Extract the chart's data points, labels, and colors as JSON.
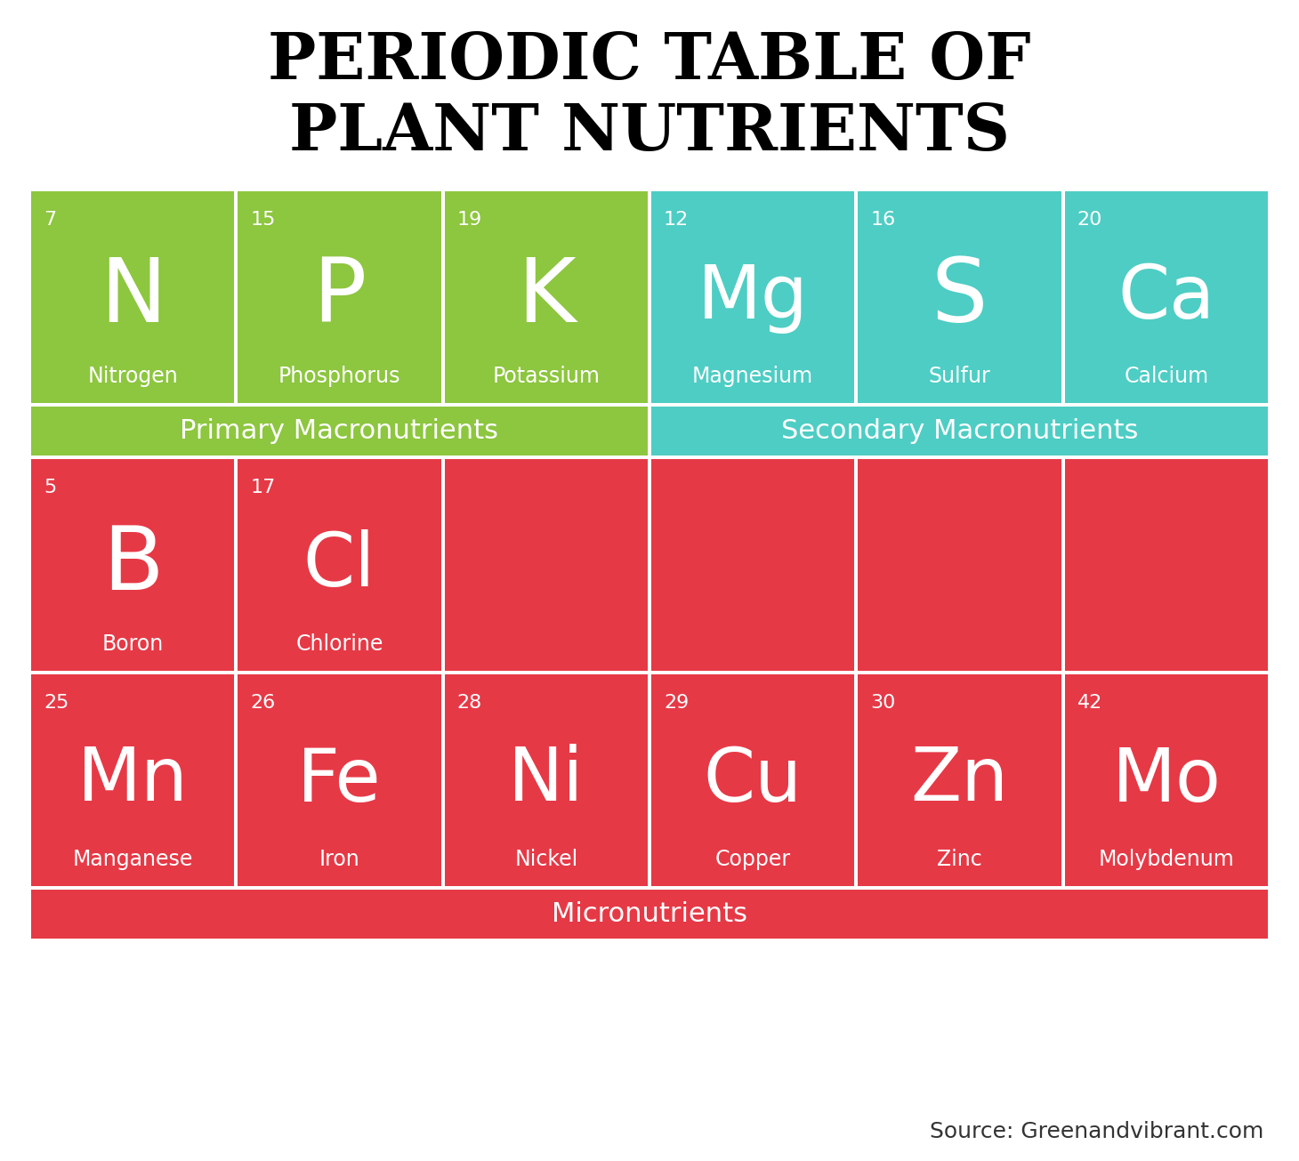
{
  "title_line1": "PERIODIC TABLE OF",
  "title_line2": "PLANT NUTRIENTS",
  "title_fontsize": 52,
  "title_color": "#000000",
  "source_text": "Source: Greenandvibrant.com",
  "bg_color": "#ffffff",
  "green_color": "#8dc63f",
  "cyan_color": "#4ecdc4",
  "red_color": "#e63946",
  "white_color": "#ffffff",
  "primary_label": "Primary Macronutrients",
  "secondary_label": "Secondary Macronutrients",
  "micro_label": "Micronutrients",
  "elements": [
    {
      "symbol": "N",
      "number": "7",
      "name": "Nitrogen",
      "row": 0,
      "col": 0,
      "color": "green"
    },
    {
      "symbol": "P",
      "number": "15",
      "name": "Phosphorus",
      "row": 0,
      "col": 1,
      "color": "green"
    },
    {
      "symbol": "K",
      "number": "19",
      "name": "Potassium",
      "row": 0,
      "col": 2,
      "color": "green"
    },
    {
      "symbol": "Mg",
      "number": "12",
      "name": "Magnesium",
      "row": 0,
      "col": 3,
      "color": "cyan"
    },
    {
      "symbol": "S",
      "number": "16",
      "name": "Sulfur",
      "row": 0,
      "col": 4,
      "color": "cyan"
    },
    {
      "symbol": "Ca",
      "number": "20",
      "name": "Calcium",
      "row": 0,
      "col": 5,
      "color": "cyan"
    },
    {
      "symbol": "B",
      "number": "5",
      "name": "Boron",
      "row": 2,
      "col": 0,
      "color": "red"
    },
    {
      "symbol": "Cl",
      "number": "17",
      "name": "Chlorine",
      "row": 2,
      "col": 1,
      "color": "red"
    },
    {
      "symbol": "Mn",
      "number": "25",
      "name": "Manganese",
      "row": 3,
      "col": 0,
      "color": "red"
    },
    {
      "symbol": "Fe",
      "number": "26",
      "name": "Iron",
      "row": 3,
      "col": 1,
      "color": "red"
    },
    {
      "symbol": "Ni",
      "number": "28",
      "name": "Nickel",
      "row": 3,
      "col": 2,
      "color": "red"
    },
    {
      "symbol": "Cu",
      "number": "29",
      "name": "Copper",
      "row": 3,
      "col": 3,
      "color": "red"
    },
    {
      "symbol": "Zn",
      "number": "30",
      "name": "Zinc",
      "row": 3,
      "col": 4,
      "color": "red"
    },
    {
      "symbol": "Mo",
      "number": "42",
      "name": "Molybdenum",
      "row": 3,
      "col": 5,
      "color": "red"
    }
  ],
  "red_empty_cells": [
    {
      "row": 2,
      "col": 2
    },
    {
      "row": 2,
      "col": 3
    },
    {
      "row": 2,
      "col": 4
    },
    {
      "row": 2,
      "col": 5
    }
  ]
}
